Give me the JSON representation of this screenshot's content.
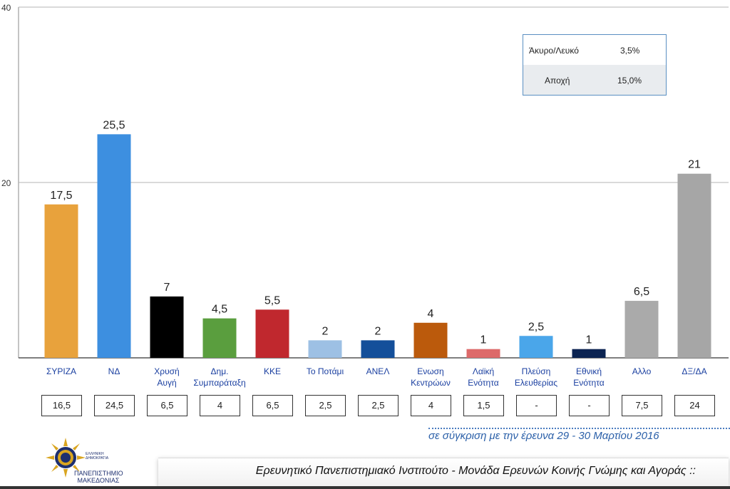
{
  "chart_data": {
    "type": "bar",
    "categories": [
      "ΣΥΡΙΖΑ",
      "ΝΔ",
      "Χρυσή Αυγή",
      "Δημ. Συμπαράταξη",
      "ΚΚΕ",
      "Το Ποτάμι",
      "ΑΝΕΛ",
      "Ενωση Κεντρώων",
      "Λαϊκή Ενότητα",
      "Πλεύση Ελευθερίας",
      "Εθνική Ενότητα",
      "Αλλο",
      "ΔΞ/ΔΑ"
    ],
    "category_lines": [
      [
        "ΣΥΡΙΖΑ"
      ],
      [
        "ΝΔ"
      ],
      [
        "Χρυσή",
        "Αυγή"
      ],
      [
        "Δημ.",
        "Συμπαράταξη"
      ],
      [
        "ΚΚΕ"
      ],
      [
        "Το Ποτάμι"
      ],
      [
        "ΑΝΕΛ"
      ],
      [
        "Ενωση",
        "Κεντρώων"
      ],
      [
        "Λαϊκή",
        "Ενότητα"
      ],
      [
        "Πλεύση",
        "Ελευθερίας"
      ],
      [
        "Εθνική",
        "Ενότητα"
      ],
      [
        "Αλλο"
      ],
      [
        "ΔΞ/ΔΑ"
      ]
    ],
    "values": [
      17.5,
      25.5,
      7,
      4.5,
      5.5,
      2,
      2,
      4,
      1,
      2.5,
      1,
      6.5,
      21
    ],
    "value_labels": [
      "17,5",
      "25,5",
      "7",
      "4,5",
      "5,5",
      "2",
      "2",
      "4",
      "1",
      "2,5",
      "1",
      "6,5",
      "21"
    ],
    "colors": [
      "#e8a23c",
      "#3d8fe0",
      "#000000",
      "#5a9e3e",
      "#c0282e",
      "#9dc0e4",
      "#144f9a",
      "#bb5a0c",
      "#dd6a6a",
      "#4aa6ea",
      "#0c2452",
      "#aaaaaa",
      "#a6a6a6"
    ],
    "previous_values": [
      "16,5",
      "24,5",
      "6,5",
      "4",
      "6,5",
      "2,5",
      "2,5",
      "4",
      "1,5",
      "-",
      "-",
      "7,5",
      "24"
    ],
    "ylim": [
      0,
      40
    ],
    "yticks": [
      20,
      40
    ],
    "grid": true
  },
  "legend_table": {
    "row1_label": "Άκυρο/Λευκό",
    "row1_value": "3,5%",
    "row2_label": "Αποχή",
    "row2_value": "15,0%"
  },
  "comparison_note": "σε σύγκριση με την έρευνα 29 - 30 Μαρτίου 2016",
  "footer_text": "Ερευνητικό Πανεπιστημιακό Ινστιτούτο - Μονάδα Ερευνών Κοινής Γνώμης και Αγοράς ::",
  "logo": {
    "name_line1": "ΠΑΝΕΠΙΣΤΗΜΙΟ",
    "name_line2": "ΜΑΚΕΔΟΝΙΑΣ",
    "small_line1": "ΕΛΛΗΝΙΚΗ",
    "small_line2": "ΔΗΜΟΚΡΑΤΙΑ"
  }
}
